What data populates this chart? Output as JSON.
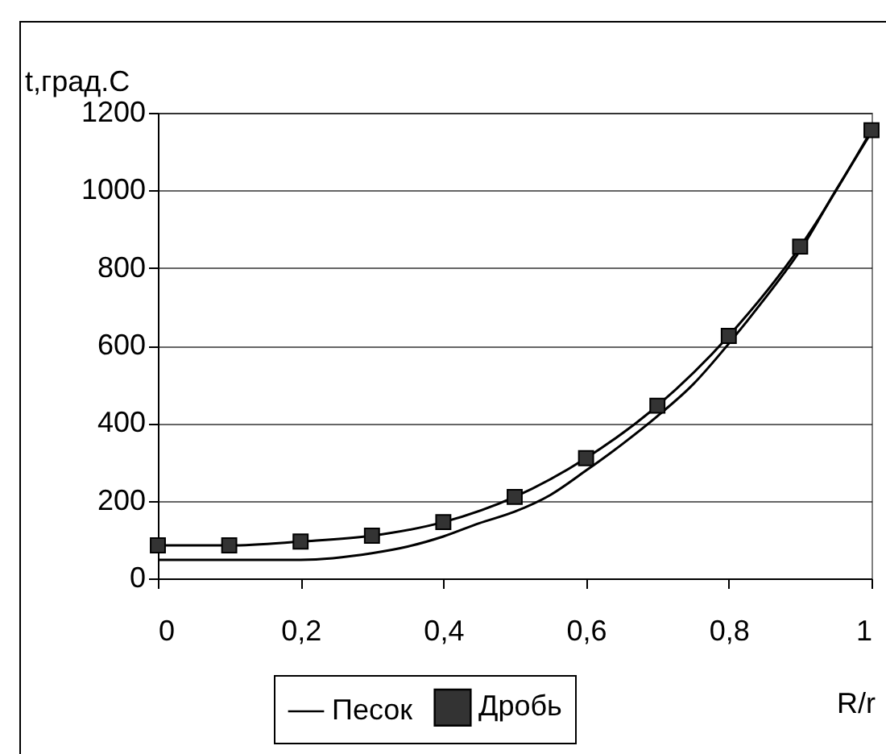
{
  "chart_data": {
    "type": "line",
    "xlabel": "R/r",
    "ylabel": "t,град.С",
    "xlim": [
      0,
      1
    ],
    "xticks": [
      0,
      {
        "value": 0.2,
        "label": "0,2"
      },
      {
        "value": 0.4,
        "label": "0,4"
      },
      {
        "value": 0.6,
        "label": "0,6"
      },
      {
        "value": 0.8,
        "label": "0,8"
      },
      1
    ],
    "ylim": [
      0,
      1200
    ],
    "yticks": [
      0,
      200,
      400,
      600,
      800,
      1000,
      1200
    ],
    "grid": "y",
    "legend": "bottom",
    "series": [
      {
        "name": "Песок",
        "color": "#000000",
        "marker": "none",
        "x": [
          0,
          0.1,
          0.2,
          0.3,
          0.35,
          0.4,
          0.45,
          0.5,
          0.55,
          0.6,
          0.65,
          0.7,
          0.75,
          0.8,
          0.85,
          0.9,
          0.95,
          1
        ],
        "values": [
          48,
          48,
          48,
          65,
          82,
          108,
          142,
          172,
          215,
          278,
          345,
          418,
          500,
          605,
          720,
          845,
          1000,
          1150
        ]
      },
      {
        "name": "Дробь",
        "color": "#000000",
        "marker": "square",
        "x": [
          0,
          0.1,
          0.2,
          0.3,
          0.4,
          0.5,
          0.6,
          0.7,
          0.8,
          0.9,
          1
        ],
        "values": [
          85,
          85,
          95,
          110,
          145,
          210,
          310,
          445,
          625,
          855,
          1155
        ]
      }
    ]
  }
}
